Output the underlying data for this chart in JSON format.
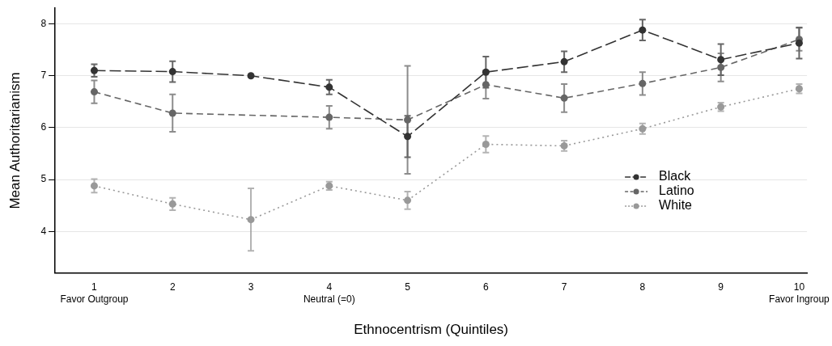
{
  "chart_data": {
    "type": "line",
    "xlabel": "Ethnocentrism (Quintiles)",
    "ylabel": "Mean Authoritarianism",
    "x": [
      1,
      2,
      3,
      4,
      5,
      6,
      7,
      8,
      9,
      10
    ],
    "xlim": [
      0.5,
      10.1
    ],
    "ylim": [
      3.2,
      8.3
    ],
    "xticks": [
      {
        "value": 1,
        "label": "1\nFavor Outgroup"
      },
      2,
      3,
      {
        "value": 4,
        "label": "4\nNeutral (=0)"
      },
      5,
      6,
      7,
      8,
      9,
      {
        "value": 10,
        "label": "10\nFavor Ingroup"
      }
    ],
    "yticks": [
      4,
      5,
      6,
      7,
      8
    ],
    "grid": "y",
    "legend": "right",
    "marker": "circle",
    "series": [
      {
        "name": "Black",
        "color": "#333333",
        "line_style": "dashed",
        "values": [
          7.1,
          7.08,
          7.0,
          6.78,
          5.83,
          7.07,
          7.27,
          7.88,
          7.31,
          7.63
        ],
        "errors": [
          0.12,
          0.2,
          null,
          0.14,
          0.4,
          0.3,
          0.2,
          0.2,
          0.3,
          0.3
        ]
      },
      {
        "name": "Latino",
        "color": "#666666",
        "line_style": "dashed",
        "values": [
          6.69,
          6.28,
          null,
          6.2,
          6.15,
          6.83,
          6.57,
          6.85,
          7.16,
          7.7
        ],
        "errors": [
          0.22,
          0.36,
          null,
          0.22,
          1.04,
          0.27,
          0.27,
          0.22,
          0.27,
          0.22
        ]
      },
      {
        "name": "White",
        "color": "#999999",
        "line_style": "dotted",
        "values": [
          4.88,
          4.53,
          4.23,
          4.88,
          4.6,
          5.68,
          5.65,
          5.98,
          6.4,
          6.75
        ],
        "errors": [
          0.13,
          0.12,
          0.6,
          0.08,
          0.17,
          0.16,
          0.1,
          0.1,
          0.08,
          0.09
        ]
      }
    ]
  }
}
